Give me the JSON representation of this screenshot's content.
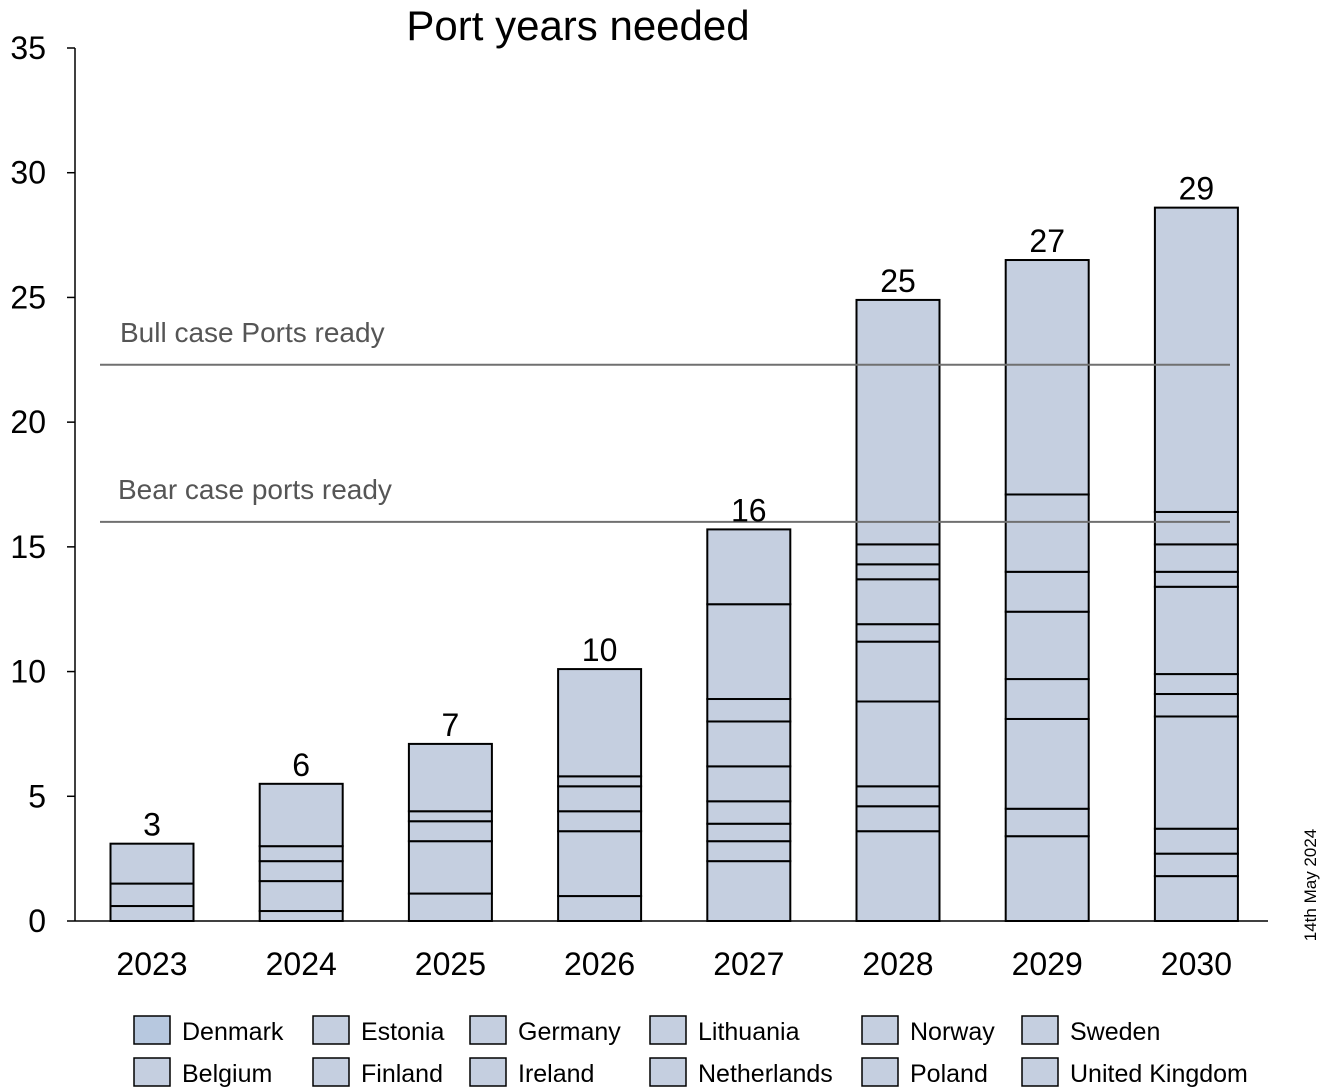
{
  "chart_data": {
    "type": "bar",
    "stacked": true,
    "title": "Port years needed",
    "xlabel": "",
    "ylabel": "",
    "ylim": [
      0,
      35
    ],
    "yticks": [
      0,
      5,
      10,
      15,
      20,
      25,
      30,
      35
    ],
    "grid": false,
    "legend_position": "bottom",
    "categories": [
      "2023",
      "2024",
      "2025",
      "2026",
      "2027",
      "2028",
      "2029",
      "2030"
    ],
    "bar_color": "#c5cfe0",
    "segment_boundaries": [
      [
        0.6,
        1.5,
        3.1
      ],
      [
        0.4,
        1.6,
        2.4,
        3.0,
        5.5
      ],
      [
        1.1,
        3.2,
        4.0,
        4.4,
        7.1
      ],
      [
        1.0,
        3.6,
        4.4,
        5.4,
        5.8,
        10.1
      ],
      [
        2.4,
        3.2,
        3.9,
        4.8,
        6.2,
        8.0,
        8.9,
        12.7,
        15.7
      ],
      [
        3.6,
        4.6,
        5.4,
        8.8,
        11.2,
        11.9,
        13.7,
        14.3,
        15.1,
        24.9
      ],
      [
        3.4,
        4.5,
        8.1,
        9.7,
        12.4,
        14.0,
        17.1,
        26.5
      ],
      [
        1.8,
        2.7,
        3.7,
        8.2,
        9.1,
        9.9,
        13.4,
        14.0,
        15.1,
        16.4,
        28.6
      ]
    ],
    "totals": [
      3.1,
      5.5,
      7.1,
      10.1,
      15.7,
      24.9,
      26.5,
      28.6
    ],
    "total_labels": [
      "3",
      "6",
      "7",
      "10",
      "16",
      "25",
      "27",
      "29"
    ],
    "reference_lines": [
      {
        "label": "Bull case Ports ready",
        "value": 22.3,
        "color": "#707070"
      },
      {
        "label": "Bear case ports ready",
        "value": 16.0,
        "color": "#707070"
      }
    ],
    "legend": [
      [
        "Denmark",
        "Estonia",
        "Germany",
        "Lithuania",
        "Norway",
        "Sweden"
      ],
      [
        "Belgium",
        "Finland",
        "Ireland",
        "Netherlands",
        "Poland",
        "United Kingdom"
      ]
    ],
    "legend_colors": [
      "#b7c8df",
      "#c5cfe0"
    ]
  },
  "date_stamp": "14th May 2024"
}
